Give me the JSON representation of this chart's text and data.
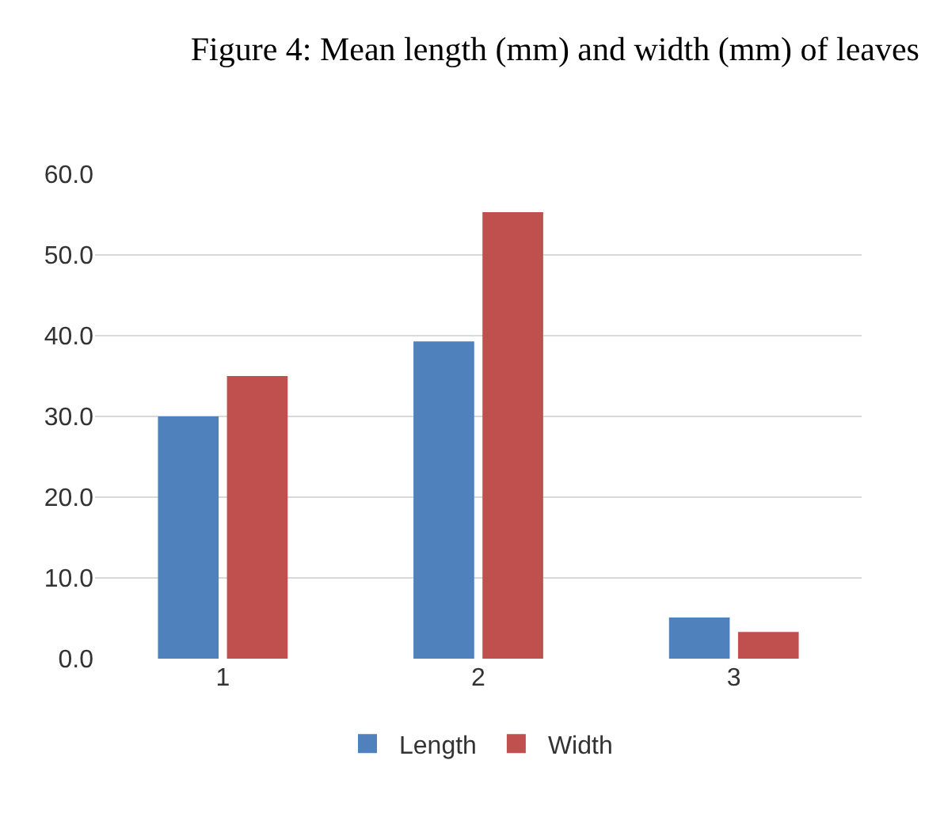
{
  "chart_data": {
    "type": "bar",
    "title": "Figure 4: Mean length (mm) and width (mm) of leaves",
    "categories": [
      "1",
      "2",
      "3"
    ],
    "series": [
      {
        "name": "Length",
        "color": "#4f81bd",
        "values": [
          30.0,
          39.3,
          5.1
        ]
      },
      {
        "name": "Width",
        "color": "#c0504d",
        "values": [
          35.0,
          55.3,
          3.3
        ]
      }
    ],
    "ylim": [
      0,
      60
    ],
    "yticks": [
      {
        "value": 0,
        "label": "0.0"
      },
      {
        "value": 10,
        "label": "10.0"
      },
      {
        "value": 20,
        "label": "20.0"
      },
      {
        "value": 30,
        "label": "30.0"
      },
      {
        "value": 40,
        "label": "40.0"
      },
      {
        "value": 50,
        "label": "50.0"
      },
      {
        "value": 60,
        "label": "60.0"
      }
    ],
    "grid": "y",
    "legend": "bottom"
  }
}
